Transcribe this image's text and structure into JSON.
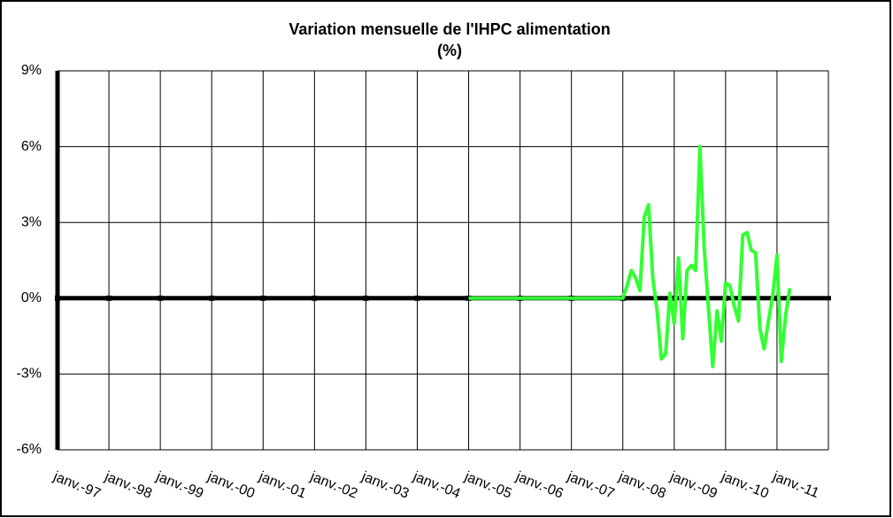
{
  "chart_data": {
    "type": "line",
    "title": "Variation mensuelle de l'IHPC alimentation",
    "subtitle": "(%)",
    "categories": [
      "janv.-97",
      null,
      null,
      null,
      null,
      null,
      null,
      null,
      null,
      null,
      null,
      null,
      "janv.-98",
      null,
      null,
      null,
      null,
      null,
      null,
      null,
      null,
      null,
      null,
      null,
      "janv.-99",
      null,
      null,
      null,
      null,
      null,
      null,
      null,
      null,
      null,
      null,
      null,
      "janv.-00",
      null,
      null,
      null,
      null,
      null,
      null,
      null,
      null,
      null,
      null,
      null,
      "janv.-01",
      null,
      null,
      null,
      null,
      null,
      null,
      null,
      null,
      null,
      null,
      null,
      "janv.-02",
      null,
      null,
      null,
      null,
      null,
      null,
      null,
      null,
      null,
      null,
      null,
      "janv.-03",
      null,
      null,
      null,
      null,
      null,
      null,
      null,
      null,
      null,
      null,
      null,
      "janv.-04",
      null,
      null,
      null,
      null,
      null,
      null,
      null,
      null,
      null,
      null,
      null,
      "janv.-05",
      null,
      null,
      null,
      null,
      null,
      null,
      null,
      null,
      null,
      null,
      null,
      "janv.-06",
      null,
      null,
      null,
      null,
      null,
      null,
      null,
      null,
      null,
      null,
      null,
      "janv.-07",
      null,
      null,
      null,
      null,
      null,
      null,
      null,
      null,
      null,
      null,
      null,
      "janv.-08",
      null,
      null,
      null,
      null,
      null,
      null,
      null,
      null,
      null,
      null,
      null,
      "janv.-09",
      null,
      null,
      null,
      null,
      null,
      null,
      null,
      null,
      null,
      null,
      null,
      "janv.-10",
      null,
      null,
      null,
      null,
      null,
      null,
      null,
      null,
      null,
      null,
      null,
      "janv.-11",
      null,
      null,
      null,
      null,
      null,
      null,
      null,
      null,
      null,
      null,
      null
    ],
    "series": [
      {
        "color": "#33ff33",
        "values": [
          null,
          null,
          null,
          null,
          null,
          null,
          null,
          null,
          null,
          null,
          null,
          null,
          null,
          null,
          null,
          null,
          null,
          null,
          null,
          null,
          null,
          null,
          null,
          null,
          null,
          null,
          null,
          null,
          null,
          null,
          null,
          null,
          null,
          null,
          null,
          null,
          null,
          null,
          null,
          null,
          null,
          null,
          null,
          null,
          null,
          null,
          null,
          null,
          null,
          null,
          null,
          null,
          null,
          null,
          null,
          null,
          null,
          null,
          null,
          null,
          null,
          null,
          null,
          null,
          null,
          null,
          null,
          null,
          null,
          null,
          null,
          null,
          null,
          null,
          null,
          null,
          null,
          null,
          null,
          null,
          null,
          null,
          null,
          null,
          null,
          null,
          null,
          null,
          null,
          null,
          null,
          null,
          null,
          null,
          null,
          null,
          0,
          0,
          0,
          0,
          0,
          0,
          0,
          0,
          0,
          0,
          0,
          0,
          0,
          0,
          0,
          0,
          0,
          0,
          0,
          0,
          0,
          0,
          0,
          0,
          0,
          0,
          0,
          0,
          0,
          0,
          0,
          0,
          0,
          0,
          0,
          0,
          0,
          0.5,
          1.1,
          0.8,
          0.3,
          3.2,
          3.7,
          0.8,
          -0.5,
          -2.4,
          -2.2,
          0.2,
          -1.0,
          1.6,
          -1.6,
          1.1,
          1.3,
          1.1,
          6.0,
          2.0,
          -0.4,
          -2.7,
          -0.5,
          -1.7,
          0.6,
          0.5,
          -0.3,
          -0.9,
          2.5,
          2.6,
          1.9,
          1.8,
          -1.2,
          -2.0,
          -0.9,
          0.1,
          1.7,
          -2.5,
          -0.7,
          0.4,
          null,
          null,
          null,
          null,
          null,
          null,
          null,
          null
        ]
      }
    ],
    "ylim": [
      -6,
      9
    ],
    "yticks": [
      {
        "value": -6,
        "label": "-6%"
      },
      {
        "value": -3,
        "label": "-3%"
      },
      {
        "value": 0,
        "label": "0%"
      },
      {
        "value": 3,
        "label": "3%"
      },
      {
        "value": 6,
        "label": "6%"
      },
      {
        "value": 9,
        "label": "9%"
      }
    ],
    "grid": true
  }
}
